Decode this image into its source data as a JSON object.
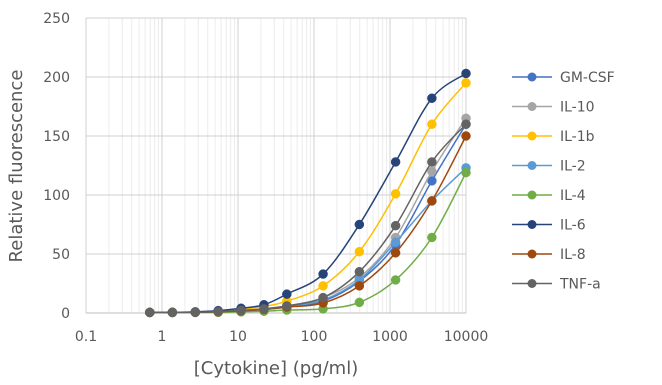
{
  "chart_data": {
    "type": "line",
    "title": "",
    "xlabel": "[Cytokine] (pg/ml)",
    "ylabel": "Relative fluorescence",
    "x_scale": "log",
    "xlim": [
      0.1,
      10000
    ],
    "ylim": [
      0,
      250
    ],
    "x_ticks": [
      "0.1",
      "1",
      "10",
      "100",
      "1000",
      "10000"
    ],
    "y_ticks": [
      "0",
      "50",
      "100",
      "150",
      "200",
      "250"
    ],
    "grid": true,
    "legend_position": "right",
    "x": [
      0.69,
      1.37,
      2.74,
      5.49,
      10.97,
      21.95,
      43.9,
      131.7,
      395.1,
      1185.2,
      3555.6,
      10000
    ],
    "series": [
      {
        "name": "GM-CSF",
        "color": "#4472C4",
        "values": [
          0.5,
          0.5,
          0.6,
          1.0,
          2.0,
          3.0,
          5.0,
          10.0,
          27.0,
          58.0,
          112.0,
          160.0
        ]
      },
      {
        "name": "IL-10",
        "color": "#A5A5A5",
        "values": [
          0.5,
          0.5,
          0.7,
          1.2,
          2.2,
          3.5,
          6.0,
          13.0,
          30.0,
          64.0,
          120.0,
          165.0
        ]
      },
      {
        "name": "IL-1b",
        "color": "#FFC000",
        "values": [
          0.5,
          0.6,
          0.8,
          1.5,
          3.0,
          5.5,
          10.0,
          23.0,
          52.0,
          101.0,
          160.0,
          195.0
        ]
      },
      {
        "name": "IL-2",
        "color": "#5B9BD5",
        "values": [
          0.5,
          0.5,
          0.6,
          1.1,
          2.0,
          3.2,
          5.5,
          11.0,
          28.0,
          60.0,
          95.0,
          123.0
        ]
      },
      {
        "name": "IL-4",
        "color": "#70AD47",
        "values": [
          0.3,
          0.3,
          0.4,
          0.6,
          1.0,
          1.5,
          2.5,
          3.5,
          9.0,
          28.0,
          64.0,
          119.0
        ]
      },
      {
        "name": "IL-6",
        "color": "#264478",
        "values": [
          0.5,
          0.6,
          1.0,
          2.0,
          4.0,
          7.0,
          16.0,
          33.0,
          75.0,
          128.0,
          182.0,
          203.0
        ]
      },
      {
        "name": "IL-8",
        "color": "#9E480E",
        "values": [
          0.5,
          0.5,
          0.6,
          1.0,
          1.8,
          3.0,
          5.0,
          8.5,
          23.0,
          51.0,
          95.0,
          150.0
        ]
      },
      {
        "name": "TNF-a",
        "color": "#636363",
        "values": [
          0.5,
          0.5,
          0.7,
          1.2,
          2.2,
          3.5,
          6.0,
          13.0,
          35.0,
          74.0,
          128.0,
          160.0
        ]
      }
    ]
  }
}
